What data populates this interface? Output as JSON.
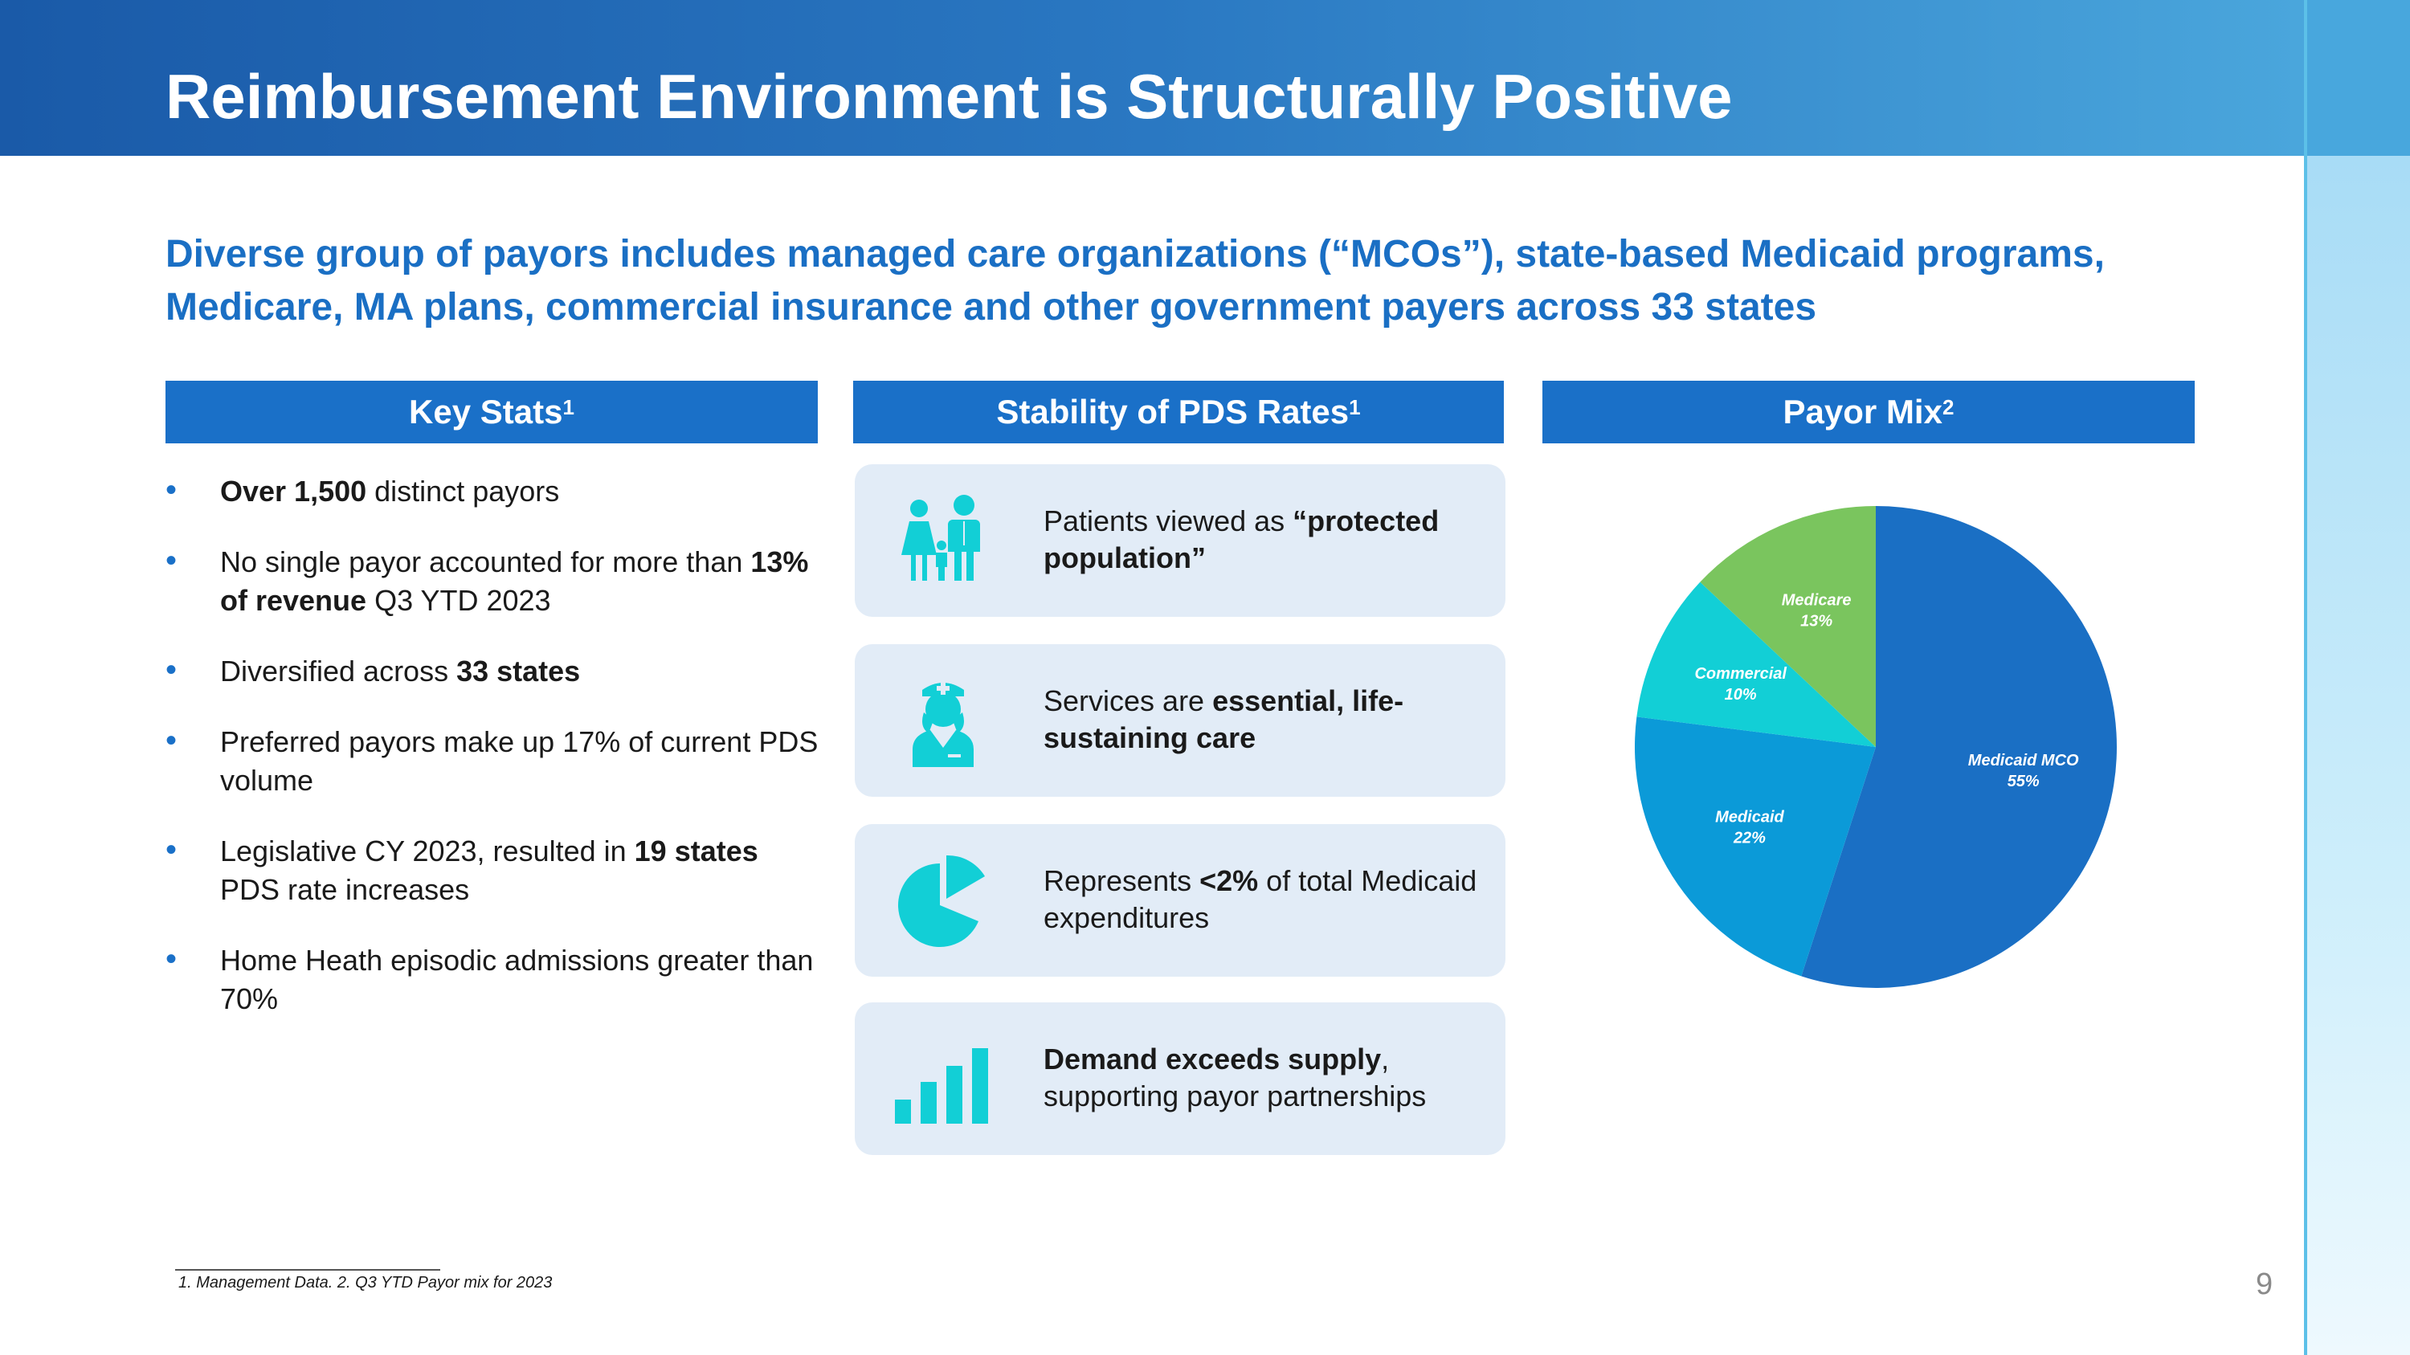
{
  "header": {
    "title": "Reimbursement Environment is Structurally Positive"
  },
  "subtitle": "Diverse group of payors includes managed care organizations (“MCOs”), state-based Medicaid programs, Medicare, MA plans, commercial insurance and other government payers across 33 states",
  "columns": {
    "key_stats": {
      "label": "Key Stats",
      "sup": "1"
    },
    "stability": {
      "label": "Stability of PDS Rates",
      "sup": "1"
    },
    "payor_mix": {
      "label": "Payor Mix",
      "sup": "2"
    }
  },
  "key_stats": [
    {
      "bold": "Over 1,500",
      "text": " distinct payors"
    },
    {
      "pre": "No single payor accounted for more than ",
      "bold": "13% of revenue",
      "post": " Q3 YTD 2023"
    },
    {
      "pre": "Diversified across ",
      "bold": "33 states"
    },
    {
      "text": "Preferred payors make up 17% of current PDS volume"
    },
    {
      "pre": "Legislative CY 2023, resulted in ",
      "bold": "19 states",
      "post": " PDS rate increases"
    },
    {
      "text": "Home Heath episodic admissions greater than 70%"
    }
  ],
  "cards": [
    {
      "icon": "family-icon",
      "pre": "Patients viewed as ",
      "bold": "“protected population”",
      "post": ""
    },
    {
      "icon": "nurse-icon",
      "pre": "Services are ",
      "bold": "essential, life-sustaining care",
      "post": ""
    },
    {
      "icon": "pie-chart-icon",
      "pre": "Represents ",
      "bold": "<2%",
      "post": " of total Medicaid expenditures"
    },
    {
      "icon": "bar-chart-icon",
      "pre": "",
      "bold": "Demand exceeds supply",
      "post": ", supporting payor partnerships"
    }
  ],
  "chart_data": {
    "type": "pie",
    "slices": [
      {
        "label": "Medicaid MCO",
        "value": 55,
        "pct_label": "55%",
        "color": "#1a6fc4"
      },
      {
        "label": "Medicaid",
        "value": 22,
        "pct_label": "22%",
        "color": "#0b9ad8"
      },
      {
        "label": "Commercial",
        "value": 10,
        "pct_label": "10%",
        "color": "#12cfd6"
      },
      {
        "label": "Medicare",
        "value": 13,
        "pct_label": "13%",
        "color": "#7ac55e"
      }
    ]
  },
  "colors": {
    "accent": "#1a70c8",
    "icon": "#12cfd6",
    "card_bg": "#e2ecf7"
  },
  "footnote": "1. Management Data.  2. Q3 YTD Payor mix for 2023",
  "page_number": "9"
}
